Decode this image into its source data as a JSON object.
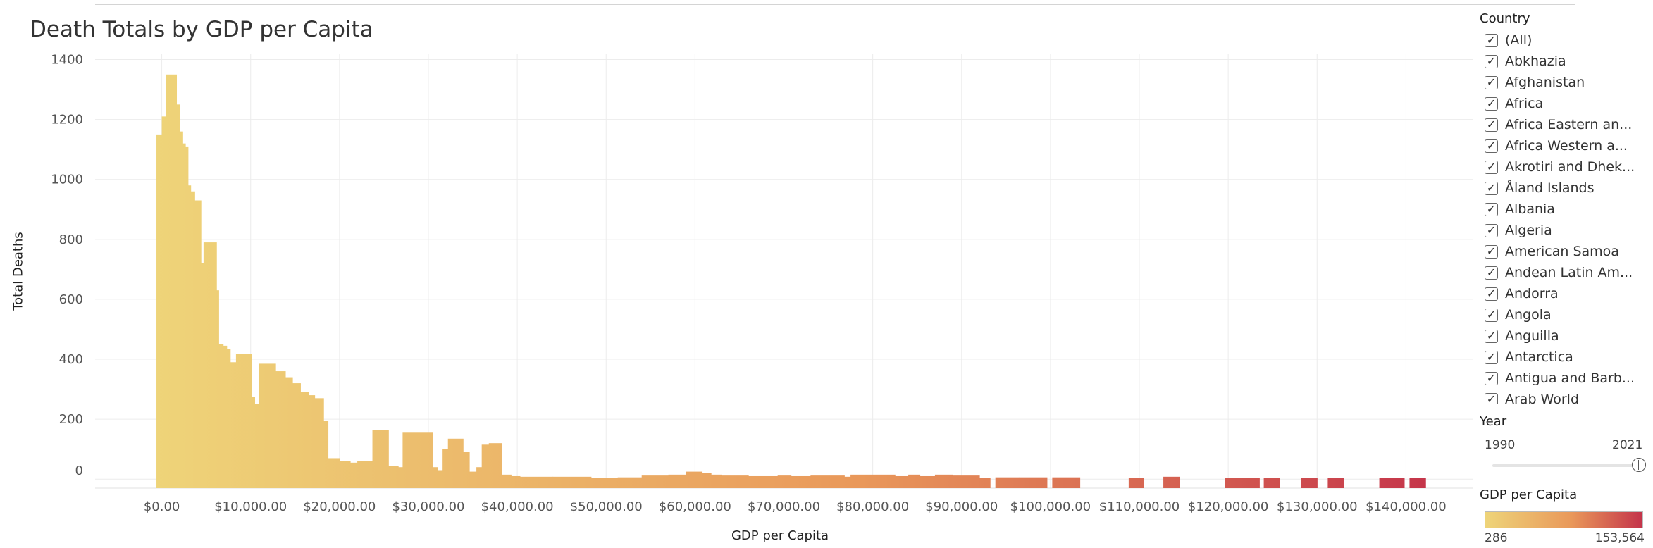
{
  "chart_data": {
    "type": "bar",
    "title": "Death Totals by GDP per Capita",
    "xlabel": "GDP per Capita",
    "ylabel": "Total Deaths",
    "xlim": [
      -7500,
      147500
    ],
    "ylim": [
      -30,
      1420
    ],
    "x_ticks": [
      0,
      10000,
      20000,
      30000,
      40000,
      50000,
      60000,
      70000,
      80000,
      90000,
      100000,
      110000,
      120000,
      130000,
      140000
    ],
    "x_tick_labels": [
      "$0.00",
      "$10,000.00",
      "$20,000.00",
      "$30,000.00",
      "$40,000.00",
      "$50,000.00",
      "$60,000.00",
      "$70,000.00",
      "$80,000.00",
      "$90,000.00",
      "$100,000.00",
      "$110,000.00",
      "$120,000.00",
      "$130,000.00",
      "$140,000.00"
    ],
    "y_ticks": [
      0,
      200,
      400,
      600,
      800,
      1000,
      1200,
      1400
    ],
    "y_tick_labels": [
      "0",
      "200",
      "400",
      "600",
      "800",
      "1000",
      "1200",
      "1400"
    ],
    "grid": true,
    "color_scale": {
      "min_color": "#eed479",
      "mid_color": "#e9985a",
      "max_color": "#c4334a"
    },
    "bars": [
      {
        "x0": -600,
        "x1": 0,
        "y": 1150
      },
      {
        "x0": 0,
        "x1": 450,
        "y": 1210
      },
      {
        "x0": 450,
        "x1": 1650,
        "y": 1350
      },
      {
        "x0": 1650,
        "x1": 2000,
        "y": 1250
      },
      {
        "x0": 2000,
        "x1": 2350,
        "y": 1160
      },
      {
        "x0": 2350,
        "x1": 2650,
        "y": 1120
      },
      {
        "x0": 2650,
        "x1": 2950,
        "y": 1110
      },
      {
        "x0": 2950,
        "x1": 3250,
        "y": 980
      },
      {
        "x0": 3250,
        "x1": 3700,
        "y": 960
      },
      {
        "x0": 3700,
        "x1": 4400,
        "y": 930
      },
      {
        "x0": 4400,
        "x1": 4700,
        "y": 720
      },
      {
        "x0": 4700,
        "x1": 6150,
        "y": 790
      },
      {
        "x0": 6150,
        "x1": 6400,
        "y": 630
      },
      {
        "x0": 6400,
        "x1": 6900,
        "y": 450
      },
      {
        "x0": 6900,
        "x1": 7300,
        "y": 445
      },
      {
        "x0": 7300,
        "x1": 7700,
        "y": 435
      },
      {
        "x0": 7700,
        "x1": 8350,
        "y": 390
      },
      {
        "x0": 8350,
        "x1": 10100,
        "y": 418
      },
      {
        "x0": 10100,
        "x1": 10450,
        "y": 275
      },
      {
        "x0": 10450,
        "x1": 10900,
        "y": 250
      },
      {
        "x0": 10900,
        "x1": 12800,
        "y": 385
      },
      {
        "x0": 12800,
        "x1": 13900,
        "y": 360
      },
      {
        "x0": 13900,
        "x1": 14700,
        "y": 340
      },
      {
        "x0": 14700,
        "x1": 15600,
        "y": 320
      },
      {
        "x0": 15600,
        "x1": 16500,
        "y": 290
      },
      {
        "x0": 16500,
        "x1": 17200,
        "y": 280
      },
      {
        "x0": 17200,
        "x1": 18200,
        "y": 270
      },
      {
        "x0": 18200,
        "x1": 18700,
        "y": 195
      },
      {
        "x0": 18700,
        "x1": 20000,
        "y": 70
      },
      {
        "x0": 20000,
        "x1": 21200,
        "y": 60
      },
      {
        "x0": 21200,
        "x1": 22000,
        "y": 55
      },
      {
        "x0": 22000,
        "x1": 23700,
        "y": 60
      },
      {
        "x0": 23700,
        "x1": 25500,
        "y": 165
      },
      {
        "x0": 25500,
        "x1": 26600,
        "y": 45
      },
      {
        "x0": 26600,
        "x1": 27100,
        "y": 40
      },
      {
        "x0": 27100,
        "x1": 30500,
        "y": 155
      },
      {
        "x0": 30500,
        "x1": 31000,
        "y": 40
      },
      {
        "x0": 31000,
        "x1": 31600,
        "y": 30
      },
      {
        "x0": 31600,
        "x1": 32200,
        "y": 100
      },
      {
        "x0": 32200,
        "x1": 33900,
        "y": 135
      },
      {
        "x0": 33900,
        "x1": 34600,
        "y": 90
      },
      {
        "x0": 34600,
        "x1": 35400,
        "y": 25
      },
      {
        "x0": 35400,
        "x1": 36000,
        "y": 40
      },
      {
        "x0": 36000,
        "x1": 36800,
        "y": 115
      },
      {
        "x0": 36800,
        "x1": 38200,
        "y": 120
      },
      {
        "x0": 38200,
        "x1": 39300,
        "y": 15
      },
      {
        "x0": 39300,
        "x1": 40300,
        "y": 10
      },
      {
        "x0": 40300,
        "x1": 44000,
        "y": 8
      },
      {
        "x0": 44000,
        "x1": 48300,
        "y": 8
      },
      {
        "x0": 48300,
        "x1": 51300,
        "y": 5
      },
      {
        "x0": 51300,
        "x1": 54000,
        "y": 6
      },
      {
        "x0": 54000,
        "x1": 57000,
        "y": 12
      },
      {
        "x0": 57000,
        "x1": 59000,
        "y": 15
      },
      {
        "x0": 59000,
        "x1": 60800,
        "y": 25
      },
      {
        "x0": 60800,
        "x1": 61800,
        "y": 20
      },
      {
        "x0": 61800,
        "x1": 63000,
        "y": 15
      },
      {
        "x0": 63000,
        "x1": 66000,
        "y": 12
      },
      {
        "x0": 66000,
        "x1": 69300,
        "y": 10
      },
      {
        "x0": 69300,
        "x1": 70800,
        "y": 12
      },
      {
        "x0": 70800,
        "x1": 73000,
        "y": 10
      },
      {
        "x0": 73000,
        "x1": 76800,
        "y": 12
      },
      {
        "x0": 76800,
        "x1": 77500,
        "y": 8
      },
      {
        "x0": 77500,
        "x1": 82500,
        "y": 15
      },
      {
        "x0": 82500,
        "x1": 84000,
        "y": 10
      },
      {
        "x0": 84000,
        "x1": 85300,
        "y": 15
      },
      {
        "x0": 85300,
        "x1": 87000,
        "y": 10
      },
      {
        "x0": 87000,
        "x1": 89000,
        "y": 15
      },
      {
        "x0": 89000,
        "x1": 92000,
        "y": 12
      },
      {
        "x0": 92000,
        "x1": 93200,
        "y": 5
      },
      {
        "x0": 93800,
        "x1": 96500,
        "y": 6
      },
      {
        "x0": 96500,
        "x1": 99600,
        "y": 6
      },
      {
        "x0": 100200,
        "x1": 103300,
        "y": 6
      },
      {
        "x0": 108800,
        "x1": 110500,
        "y": 4
      },
      {
        "x0": 112700,
        "x1": 114500,
        "y": 8
      },
      {
        "x0": 119600,
        "x1": 123500,
        "y": 5
      },
      {
        "x0": 124000,
        "x1": 125800,
        "y": 4
      },
      {
        "x0": 128200,
        "x1": 130000,
        "y": 4
      },
      {
        "x0": 131200,
        "x1": 133000,
        "y": 4
      },
      {
        "x0": 137000,
        "x1": 139800,
        "y": 4
      },
      {
        "x0": 140400,
        "x1": 142200,
        "y": 4
      }
    ]
  },
  "filters": {
    "country": {
      "title": "Country",
      "items": [
        "(All)",
        "Abkhazia",
        "Afghanistan",
        "Africa",
        "Africa Eastern an...",
        "Africa Western a...",
        "Akrotiri and Dhek...",
        "Åland Islands",
        "Albania",
        "Algeria",
        "American Samoa",
        "Andean Latin Am...",
        "Andorra",
        "Angola",
        "Anguilla",
        "Antarctica",
        "Antigua and Barb...",
        "Arab World"
      ],
      "check_mark": "✓"
    },
    "year": {
      "title": "Year",
      "min": "1990",
      "max": "2021",
      "value": 2021
    },
    "gdp_legend": {
      "title": "GDP per Capita",
      "min": "286",
      "max": "153,564"
    }
  }
}
